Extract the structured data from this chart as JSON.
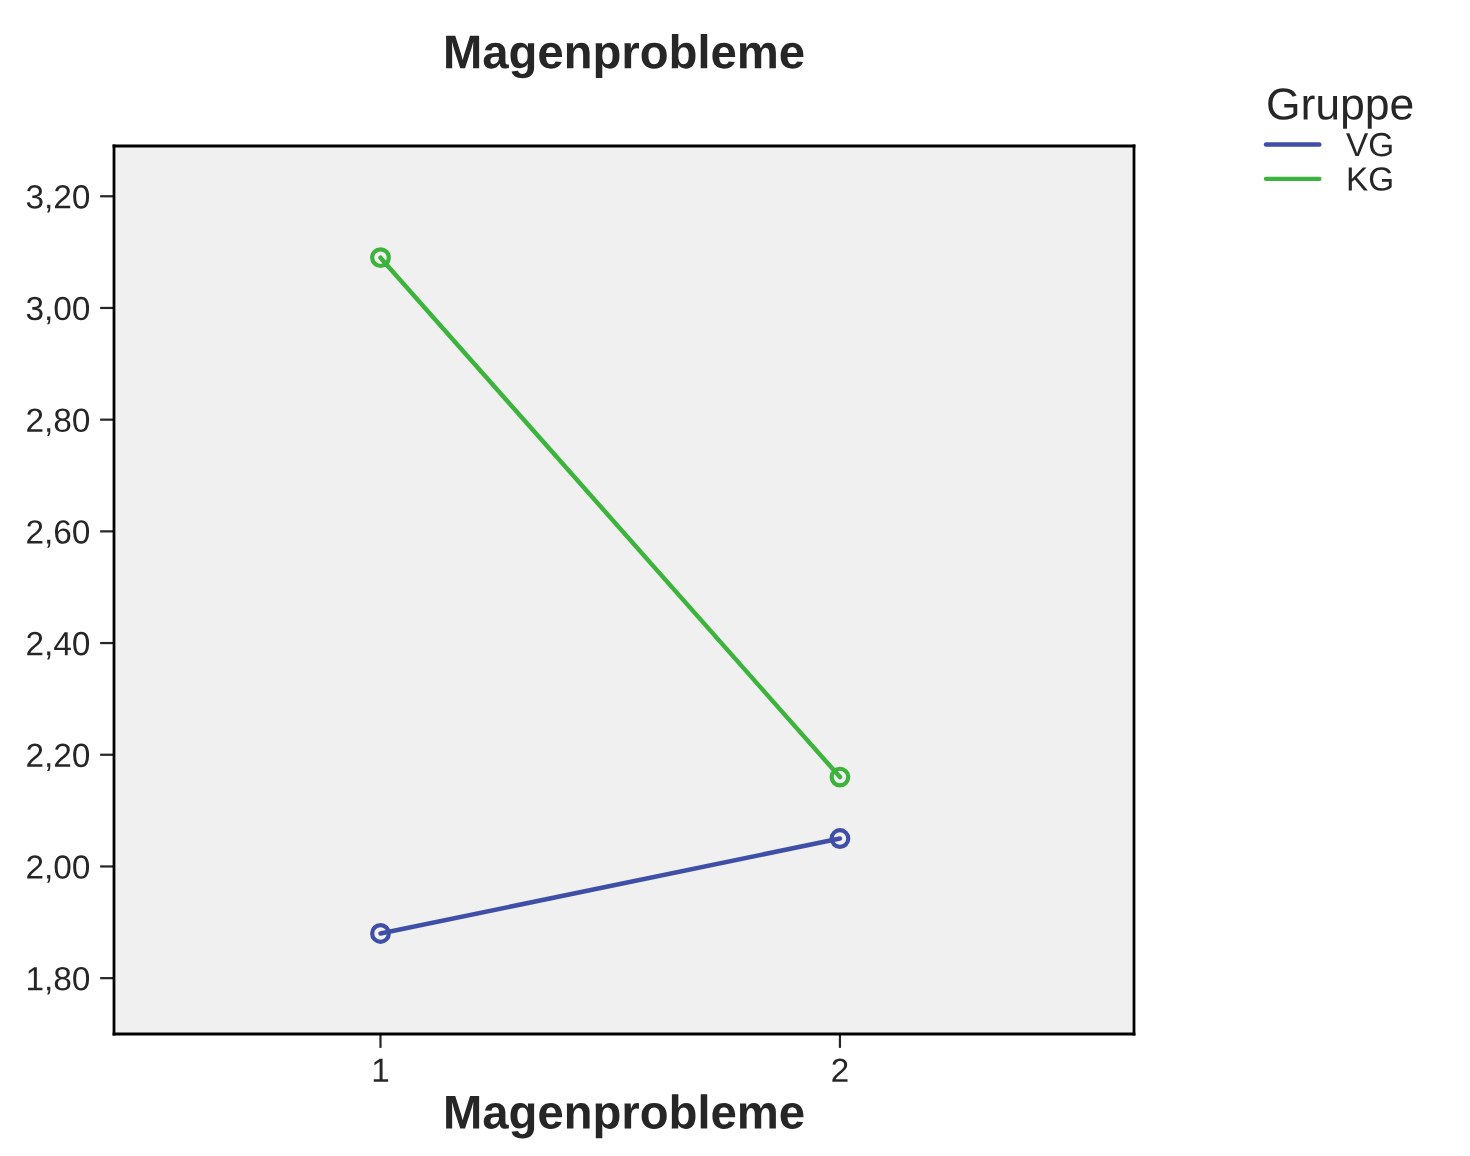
{
  "chart_data": {
    "type": "line",
    "title": "Magenprobleme",
    "xlabel": "Magenprobleme",
    "legend_title": "Gruppe",
    "x": [
      1,
      2
    ],
    "series": [
      {
        "name": "VG",
        "color": "#3f4fa8",
        "values": [
          1.88,
          2.05
        ]
      },
      {
        "name": "KG",
        "color": "#3cb43c",
        "values": [
          3.09,
          2.16
        ]
      }
    ],
    "xlim": [
      0.42,
      2.64
    ],
    "xticks": [
      1,
      2
    ],
    "ylim": [
      1.7,
      3.29
    ],
    "yticks": [
      {
        "value": 1.8,
        "label": "1,80"
      },
      {
        "value": 2.0,
        "label": "2,00"
      },
      {
        "value": 2.2,
        "label": "2,20"
      },
      {
        "value": 2.4,
        "label": "2,40"
      },
      {
        "value": 2.6,
        "label": "2,60"
      },
      {
        "value": 2.8,
        "label": "2,80"
      },
      {
        "value": 3.0,
        "label": "3,00"
      },
      {
        "value": 3.2,
        "label": "3,20"
      }
    ],
    "marker": "circle",
    "line_style": "solid",
    "grid": false,
    "legend": "top right"
  }
}
